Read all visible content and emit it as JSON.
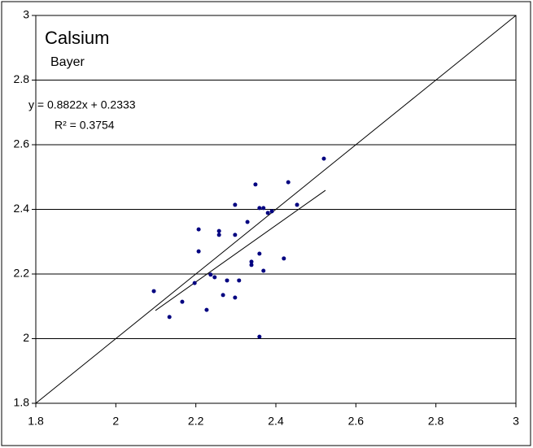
{
  "chart_data": {
    "type": "scatter",
    "title": "Calsium",
    "subtitle": "Bayer",
    "annotations": [
      "y = 0.8822x + 0.2333",
      "R² = 0.3754"
    ],
    "x": [
      2.095,
      2.134,
      2.166,
      2.197,
      2.207,
      2.207,
      2.227,
      2.237,
      2.247,
      2.258,
      2.258,
      2.268,
      2.278,
      2.298,
      2.298,
      2.298,
      2.308,
      2.329,
      2.339,
      2.339,
      2.349,
      2.359,
      2.359,
      2.359,
      2.369,
      2.369,
      2.38,
      2.39,
      2.42,
      2.431,
      2.453,
      2.52
    ],
    "values": [
      2.147,
      2.067,
      2.114,
      2.172,
      2.338,
      2.27,
      2.089,
      2.198,
      2.19,
      2.333,
      2.321,
      2.135,
      2.18,
      2.414,
      2.321,
      2.127,
      2.18,
      2.361,
      2.238,
      2.228,
      2.477,
      2.404,
      2.263,
      2.006,
      2.404,
      2.21,
      2.389,
      2.394,
      2.248,
      2.484,
      2.414,
      2.557
    ],
    "color": "#000080",
    "trendline": {
      "x": [
        2.099,
        2.524
      ],
      "y": [
        2.087,
        2.459
      ]
    },
    "xlim": [
      1.8,
      3
    ],
    "ylim": [
      1.8,
      3
    ],
    "xticks": [
      1.8,
      2,
      2.2,
      2.4,
      2.6,
      2.8,
      3
    ],
    "yticks": [
      1.8,
      2,
      2.2,
      2.4,
      2.6,
      2.8,
      3
    ],
    "grid": true
  }
}
